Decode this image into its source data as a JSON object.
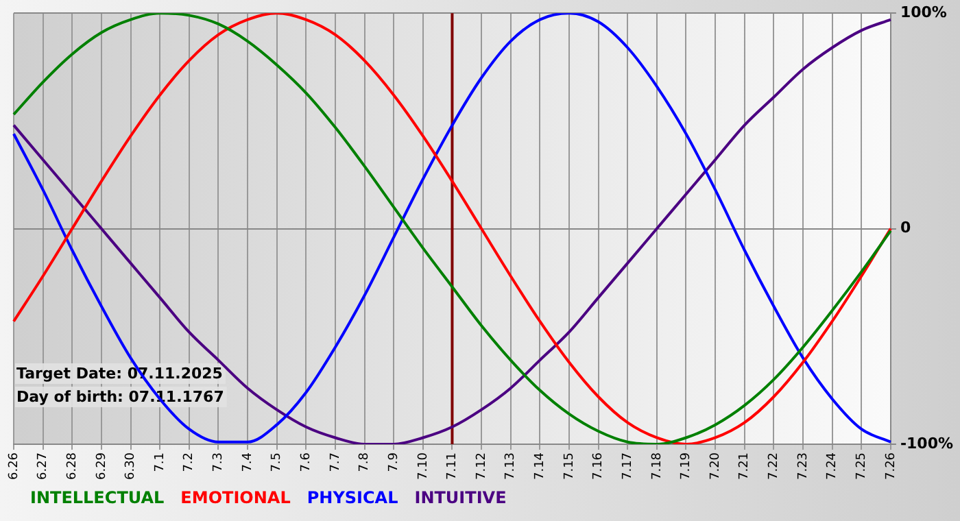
{
  "chart_data": {
    "type": "line",
    "categories": [
      "6.26",
      "6.27",
      "6.28",
      "6.29",
      "6.30",
      "7.1",
      "7.2",
      "7.3",
      "7.4",
      "7.5",
      "7.6",
      "7.7",
      "7.8",
      "7.9",
      "7.10",
      "7.11",
      "7.12",
      "7.13",
      "7.14",
      "7.15",
      "7.16",
      "7.17",
      "7.18",
      "7.19",
      "7.20",
      "7.21",
      "7.22",
      "7.23",
      "7.24",
      "7.25",
      "7.26"
    ],
    "series": [
      {
        "name": "INTELLECTUAL",
        "color": "#008000",
        "values": [
          53,
          68,
          81,
          91,
          97,
          100,
          99,
          95,
          87,
          76,
          63,
          47,
          29,
          10,
          -9,
          -27,
          -45,
          -61,
          -75,
          -86,
          -94,
          -99,
          -100,
          -97,
          -91,
          -82,
          -70,
          -55,
          -38,
          -20,
          -1
        ]
      },
      {
        "name": "EMOTIONAL",
        "color": "#ff0000",
        "values": [
          -43,
          -22,
          0,
          22,
          43,
          62,
          78,
          90,
          97,
          100,
          97,
          90,
          78,
          62,
          43,
          22,
          0,
          -22,
          -43,
          -62,
          -78,
          -90,
          -97,
          -100,
          -97,
          -90,
          -78,
          -62,
          -43,
          -22,
          0
        ]
      },
      {
        "name": "PHYSICAL",
        "color": "#0000ff",
        "values": [
          44,
          18,
          -10,
          -36,
          -60,
          -79,
          -93,
          -99,
          -99,
          -91,
          -76,
          -55,
          -31,
          -4,
          23,
          48,
          70,
          87,
          97,
          100,
          96,
          84,
          66,
          44,
          18,
          -10,
          -36,
          -60,
          -79,
          -93,
          -99
        ]
      },
      {
        "name": "INTUITIVE",
        "color": "#4b0082",
        "values": [
          48,
          32,
          16,
          0,
          -16,
          -32,
          -48,
          -61,
          -74,
          -84,
          -92,
          -97,
          -100,
          -100,
          -97,
          -92,
          -84,
          -74,
          -61,
          -48,
          -32,
          -16,
          0,
          16,
          32,
          48,
          61,
          74,
          84,
          92,
          97
        ]
      }
    ],
    "ylim": [
      -100,
      100
    ],
    "yticks": [
      {
        "value": -100,
        "label": "-100%"
      },
      0,
      {
        "value": 100,
        "label": "100%"
      }
    ],
    "grid": true,
    "legend": "bottom left",
    "marker": "none",
    "line_style": "solid",
    "ref_lines": [
      {
        "axis": "x",
        "value": "7.11",
        "color": "#800000"
      }
    ],
    "annotations": [
      "Target Date: 07.11.2025",
      "Day of birth: 07.11.1767"
    ]
  }
}
